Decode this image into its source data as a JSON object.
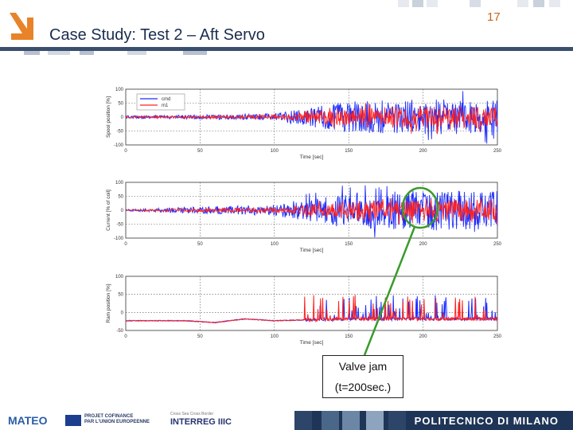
{
  "slide": {
    "title": "Case Study: Test 2 –  Aft Servo",
    "page_number": "17"
  },
  "callout": {
    "line1": "Valve jam",
    "line2": "(t=200sec.)"
  },
  "footer": {
    "left_logo": "MATEO",
    "eu_text_line1": "PROJET COFINANCE",
    "eu_text_line2": "PAR L'UNION EUROPEENNE",
    "interreg_top": "Cross Sea Cross Border",
    "interreg": "INTERREG IIIC",
    "right_label": "POLITECNICO DI MILANO"
  },
  "colors": {
    "title": "#1b2d4f",
    "accent": "#c8661a",
    "series_blue": "#1c2cff",
    "series_red": "#ff2020",
    "annotation": "#3a9a2c"
  },
  "chart_data": [
    {
      "type": "line",
      "xlabel": "Time [sec]",
      "ylabel": "Spool position [%]",
      "xlim": [
        0,
        250
      ],
      "xticks": [
        "0",
        "50",
        "100",
        "150",
        "200",
        "250"
      ],
      "yticks": [
        "100",
        "50",
        "0",
        "-50",
        "-100"
      ],
      "legend": [
        "cmd",
        "m1"
      ],
      "legend_placement": "top-left",
      "grid": "dotted",
      "series": [
        {
          "name": "cmd",
          "color": "#1c2cff",
          "x": [
            0,
            50,
            100,
            120,
            150,
            200,
            250
          ],
          "amplitude": [
            3,
            5,
            8,
            20,
            35,
            40,
            38
          ]
        },
        {
          "name": "m1",
          "color": "#ff2020",
          "x": [
            0,
            50,
            100,
            120,
            150,
            200,
            250
          ],
          "amplitude": [
            2,
            3,
            5,
            12,
            22,
            25,
            24
          ]
        }
      ]
    },
    {
      "type": "line",
      "xlabel": "Time [sec]",
      "ylabel": "Current [% of coil]",
      "xlim": [
        0,
        250
      ],
      "xticks": [
        "0",
        "50",
        "100",
        "150",
        "200",
        "250"
      ],
      "yticks": [
        "100",
        "50",
        "0",
        "-50",
        "-100"
      ],
      "grid": "dotted",
      "series": [
        {
          "color": "#1c2cff",
          "x": [
            0,
            50,
            100,
            120,
            150,
            200,
            250
          ],
          "amplitude": [
            2,
            8,
            12,
            25,
            40,
            45,
            45
          ]
        },
        {
          "color": "#ff2020",
          "x": [
            0,
            50,
            100,
            120,
            150,
            200,
            250
          ],
          "amplitude": [
            1,
            4,
            6,
            12,
            20,
            25,
            25
          ]
        }
      ]
    },
    {
      "type": "line",
      "xlabel": "Time [sec]",
      "ylabel": "Ram position [%]",
      "xlim": [
        0,
        250
      ],
      "xticks": [
        "0",
        "50",
        "100",
        "150",
        "200",
        "250"
      ],
      "yticks": [
        "100",
        "50",
        "0",
        "-50"
      ],
      "grid": "dotted",
      "series": [
        {
          "color": "#1c2cff",
          "x": [
            0,
            40,
            60,
            80,
            100,
            120,
            150,
            200,
            250
          ],
          "baseline": [
            0,
            0,
            -5,
            5,
            0,
            2,
            5,
            5,
            5
          ]
        },
        {
          "color": "#ff2020",
          "x": [
            0,
            40,
            60,
            80,
            100,
            120,
            150,
            200,
            250
          ],
          "baseline": [
            0,
            0,
            -5,
            5,
            0,
            2,
            5,
            5,
            5
          ]
        }
      ]
    }
  ]
}
